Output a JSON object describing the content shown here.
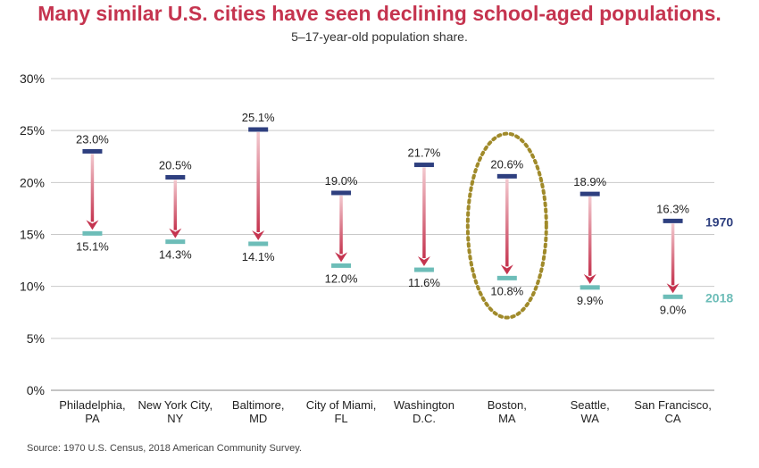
{
  "chart_data": {
    "type": "dot-arrow",
    "title": "Many similar U.S. cities have seen declining school-aged populations.",
    "subtitle": "5–17-year-old population share.",
    "source": "Source: 1970 U.S. Census, 2018 American Community Survey.",
    "ylim": [
      0,
      30
    ],
    "yticks": [
      "0%",
      "5%",
      "10%",
      "15%",
      "20%",
      "25%",
      "30%"
    ],
    "ytick_values": [
      0,
      5,
      10,
      15,
      20,
      25,
      30
    ],
    "categories": [
      [
        "Philadelphia,",
        "PA"
      ],
      [
        "New York City,",
        "NY"
      ],
      [
        "Baltimore,",
        "MD"
      ],
      [
        "City of Miami,",
        "FL"
      ],
      [
        "Washington",
        "D.C."
      ],
      [
        "Boston,",
        "MA"
      ],
      [
        "Seattle,",
        "WA"
      ],
      [
        "San Francisco,",
        "CA"
      ]
    ],
    "series": [
      {
        "name": "1970",
        "color": "#2e3f7f",
        "values": [
          23.0,
          20.5,
          25.1,
          19.0,
          21.7,
          20.6,
          18.9,
          16.3
        ],
        "labels": [
          "23.0%",
          "20.5%",
          "25.1%",
          "19.0%",
          "21.7%",
          "20.6%",
          "18.9%",
          "16.3%"
        ]
      },
      {
        "name": "2018",
        "color": "#6dbdb8",
        "values": [
          15.1,
          14.3,
          14.1,
          12.0,
          11.6,
          10.8,
          9.9,
          9.0
        ],
        "labels": [
          "15.1%",
          "14.3%",
          "14.1%",
          "12.0%",
          "11.6%",
          "10.8%",
          "9.9%",
          "9.0%"
        ]
      }
    ],
    "highlight_index": 5,
    "highlight_color": "#a08a2a",
    "arrow_color": "#c5344f"
  }
}
